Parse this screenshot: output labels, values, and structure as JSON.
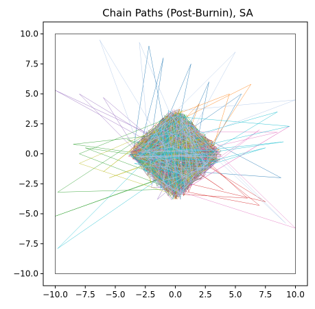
{
  "chart_data": {
    "type": "line",
    "title": "Chain Paths (Post-Burnin), SA",
    "xlabel": "",
    "ylabel": "",
    "xlim": [
      -11,
      11
    ],
    "ylim": [
      -11,
      11
    ],
    "boundary_box": [
      -10,
      10
    ],
    "x_ticks": [
      -10.0,
      -7.5,
      -5.0,
      -2.5,
      0.0,
      2.5,
      5.0,
      7.5,
      10.0
    ],
    "y_ticks": [
      10.0,
      7.5,
      5.0,
      2.5,
      0.0,
      -2.5,
      -5.0,
      -7.5,
      -10.0
    ],
    "x_tick_labels": [
      "−10.0",
      "−7.5",
      "−5.0",
      "−2.5",
      "0.0",
      "2.5",
      "5.0",
      "7.5",
      "10.0"
    ],
    "y_tick_labels": [
      "10.0",
      "7.5",
      "5.0",
      "2.5",
      "0.0",
      "−2.5",
      "−5.0",
      "−7.5",
      "−10.0"
    ],
    "grid": false,
    "legend": "none",
    "attractor": {
      "vertices": [
        [
          0,
          3.6
        ],
        [
          3.6,
          0
        ],
        [
          0,
          -3.6
        ],
        [
          -3.6,
          0
        ]
      ],
      "center_cross": true
    },
    "series": [
      {
        "color": "#1f77b4",
        "excursions": [
          [
            -2.2,
            9.0
          ],
          [
            -1.0,
            8.0
          ],
          [
            1.3,
            7.5
          ],
          [
            2.8,
            6.0
          ],
          [
            5.5,
            5.0
          ],
          [
            8.8,
            -2.0
          ]
        ]
      },
      {
        "color": "#ff7f0e",
        "excursions": [
          [
            6.3,
            5.8
          ],
          [
            4.5,
            5.0
          ],
          [
            2.0,
            4.2
          ]
        ]
      },
      {
        "color": "#2ca02c",
        "excursions": [
          [
            -10.0,
            -5.2
          ],
          [
            -9.8,
            -3.2
          ],
          [
            -8.0,
            0.0
          ],
          [
            -7.5,
            0.5
          ],
          [
            -4.0,
            1.2
          ],
          [
            -8.5,
            0.8
          ]
        ]
      },
      {
        "color": "#d62728",
        "excursions": [
          [
            7.5,
            -4.0
          ],
          [
            6.0,
            -3.7
          ],
          [
            4.0,
            -3.0
          ],
          [
            7.0,
            -4.3
          ]
        ]
      },
      {
        "color": "#9467bd",
        "excursions": [
          [
            -10.0,
            5.3
          ],
          [
            -8.0,
            5.0
          ],
          [
            -6.0,
            4.7
          ],
          [
            -1.5,
            -3.8
          ],
          [
            -2.0,
            -2.8
          ]
        ]
      },
      {
        "color": "#8c564b",
        "excursions": [
          [
            -1.0,
            -1.5
          ],
          [
            1.0,
            2.0
          ]
        ]
      },
      {
        "color": "#e377c2",
        "excursions": [
          [
            9.5,
            2.3
          ],
          [
            8.5,
            1.8
          ],
          [
            7.0,
            2.0
          ],
          [
            10.0,
            -6.2
          ]
        ]
      },
      {
        "color": "#7f7f7f",
        "excursions": [
          [
            0.5,
            0.5
          ],
          [
            -0.5,
            -0.5
          ]
        ]
      },
      {
        "color": "#bcbd22",
        "excursions": [
          [
            -8.0,
            -0.8
          ],
          [
            -6.0,
            -1.5
          ],
          [
            -2.0,
            -2.5
          ],
          [
            -5.5,
            -2.0
          ]
        ]
      },
      {
        "color": "#17becf",
        "excursions": [
          [
            -9.8,
            -7.9
          ],
          [
            9.5,
            2.3
          ],
          [
            9.0,
            1.0
          ],
          [
            8.5,
            3.5
          ],
          [
            7.5,
            0.5
          ]
        ]
      },
      {
        "color": "#aec7e8",
        "excursions": [
          [
            -6.3,
            9.5
          ],
          [
            -3.0,
            9.3
          ],
          [
            9.2,
            -5.8
          ],
          [
            10.0,
            4.5
          ],
          [
            5.0,
            8.5
          ]
        ]
      }
    ]
  }
}
